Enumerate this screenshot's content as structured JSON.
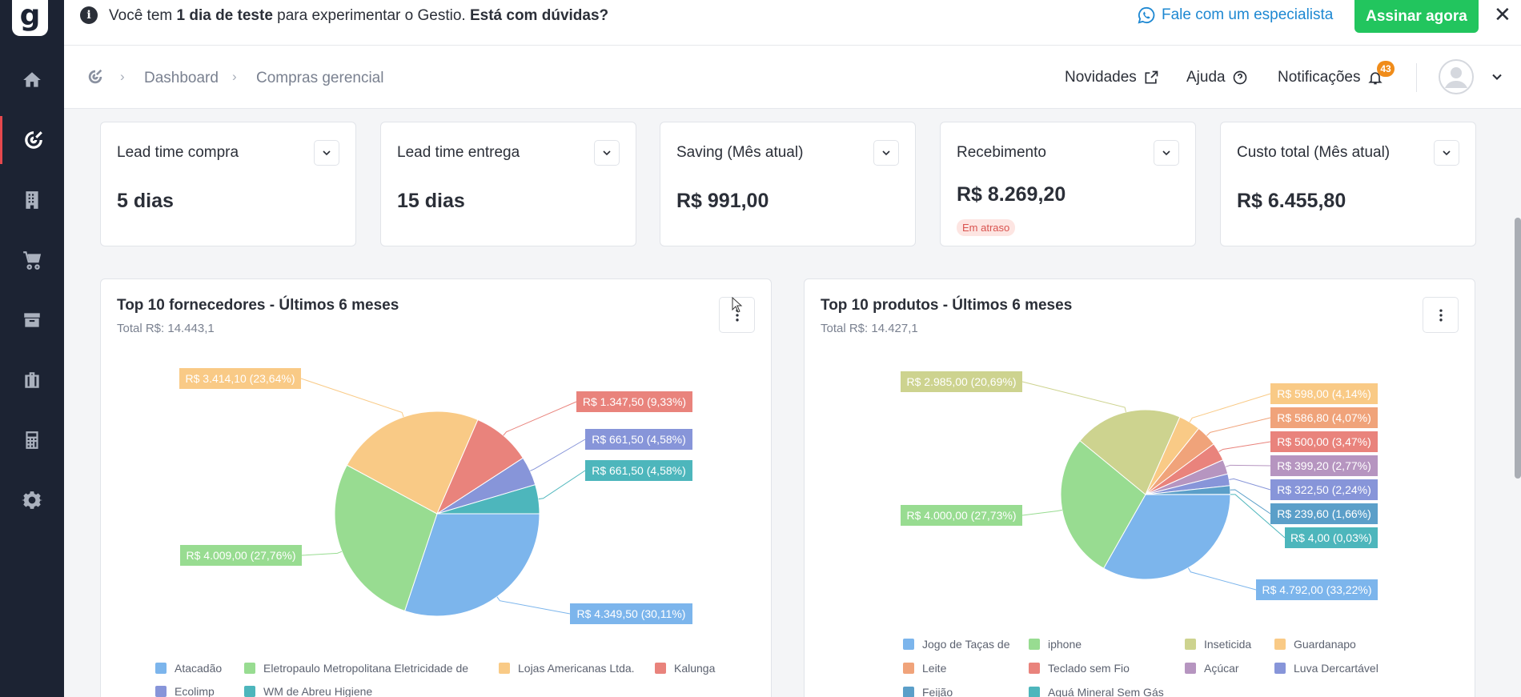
{
  "banner": {
    "text_prefix": "Você tem ",
    "text_trial": "1 dia de teste",
    "text_middle": " para experimentar o Gestio. ",
    "text_question": "Está com dúvidas?",
    "whatsapp_label": "Fale com um especialista",
    "subscribe_label": "Assinar agora",
    "close_glyph": "✕"
  },
  "breadcrumb": {
    "items": [
      "Dashboard",
      "Compras gerencial"
    ]
  },
  "header": {
    "news_label": "Novidades",
    "help_label": "Ajuda",
    "notifications_label": "Notificações",
    "notifications_count": "43"
  },
  "kpis": [
    {
      "title": "Lead time compra",
      "value": "5 dias"
    },
    {
      "title": "Lead time entrega",
      "value": "15 dias"
    },
    {
      "title": "Saving (Mês atual)",
      "value": "R$ 991,00"
    },
    {
      "title": "Recebimento",
      "value": "R$ 8.269,20",
      "badge": "Em atraso"
    },
    {
      "title": "Custo total (Mês atual)",
      "value": "R$ 6.455,80"
    }
  ],
  "panels": [
    {
      "title": "Top 10 fornecedores - Últimos 6 meses",
      "subtitle": "Total R$: 14.443,1"
    },
    {
      "title": "Top 10 produtos - Últimos 6 meses",
      "subtitle": "Total R$: 14.427,1"
    }
  ],
  "colors": {
    "accent": "#22c55e",
    "link": "#1e88d2",
    "sidebar": "#1c2333",
    "badge": "#f08c1a",
    "late": "#d9534f"
  },
  "chart_data": [
    {
      "type": "pie",
      "title": "Top 10 fornecedores - Últimos 6 meses",
      "subtitle": "Total R$: 14.443,1",
      "legend_position": "bottom",
      "slices": [
        {
          "name": "Atacadão",
          "value": 4349.5,
          "label": "R$ 4.349,50 (30,11%)",
          "color": "#7cb5ec"
        },
        {
          "name": "Eletropaulo Metropolitana Eletricidade de",
          "value": 4009.0,
          "label": "R$ 4.009,00 (27,76%)",
          "color": "#98dc91"
        },
        {
          "name": "Lojas Americanas Ltda.",
          "value": 3414.1,
          "label": "R$ 3.414,10 (23,64%)",
          "color": "#f9ca86"
        },
        {
          "name": "Kalunga",
          "value": 1347.5,
          "label": "R$ 1.347,50 (9,33%)",
          "color": "#e9837c"
        },
        {
          "name": "Ecolimp",
          "value": 661.5,
          "label": "R$ 661,50 (4,58%)",
          "color": "#8795d9"
        },
        {
          "name": "WM de Abreu Higiene",
          "value": 661.5,
          "label": "R$ 661,50 (4,58%)",
          "color": "#4db6bc"
        }
      ]
    },
    {
      "type": "pie",
      "title": "Top 10 produtos - Últimos 6 meses",
      "subtitle": "Total R$: 14.427,1",
      "legend_position": "bottom",
      "slices": [
        {
          "name": "Jogo de Taças de",
          "value": 4792.0,
          "label": "R$ 4.792,00 (33,22%)",
          "color": "#7cb5ec"
        },
        {
          "name": "iphone",
          "value": 4000.0,
          "label": "R$ 4.000,00 (27,73%)",
          "color": "#98dc91"
        },
        {
          "name": "Inseticida",
          "value": 2985.0,
          "label": "R$ 2.985,00 (20,69%)",
          "color": "#cdd38f"
        },
        {
          "name": "Guardanapo",
          "value": 598.0,
          "label": "R$ 598,00 (4,14%)",
          "color": "#f9ca86"
        },
        {
          "name": "Leite",
          "value": 586.8,
          "label": "R$ 586,80 (4,07%)",
          "color": "#f0a37a"
        },
        {
          "name": "Teclado sem Fio",
          "value": 500.0,
          "label": "R$ 500,00 (3,47%)",
          "color": "#e9837c"
        },
        {
          "name": "Açúcar",
          "value": 399.2,
          "label": "R$ 399,20 (2,77%)",
          "color": "#b695c0"
        },
        {
          "name": "Luva Dercartável",
          "value": 322.5,
          "label": "R$ 322,50 (2,24%)",
          "color": "#8795d9"
        },
        {
          "name": "Feijão",
          "value": 239.6,
          "label": "R$ 239,60 (1,66%)",
          "color": "#5b9fc9"
        },
        {
          "name": "Aguá Mineral Sem Gás",
          "value": 4.0,
          "label": "R$ 4,00 (0,03%)",
          "color": "#4db6bc"
        }
      ]
    }
  ]
}
